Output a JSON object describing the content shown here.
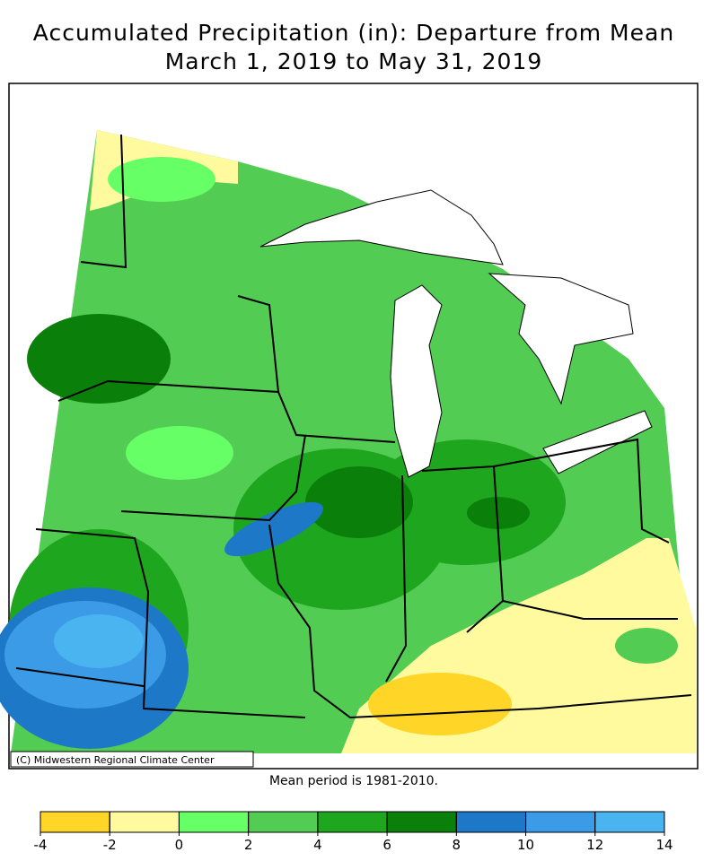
{
  "title": "Accumulated Precipitation (in): Departure from Mean",
  "subtitle": "March 1, 2019 to May 31, 2019",
  "credit": "(C) Midwestern Regional Climate Center",
  "note": "Mean period is 1981-2010.",
  "legend": {
    "ticks": [
      -4,
      -2,
      0,
      2,
      4,
      6,
      8,
      10,
      12,
      14
    ],
    "colors": [
      "#ffd528",
      "#fffa9e",
      "#66ff66",
      "#52cc52",
      "#1fa61f",
      "#0a800a",
      "#1e78c8",
      "#3c9be6",
      "#4ab4f0"
    ]
  }
}
